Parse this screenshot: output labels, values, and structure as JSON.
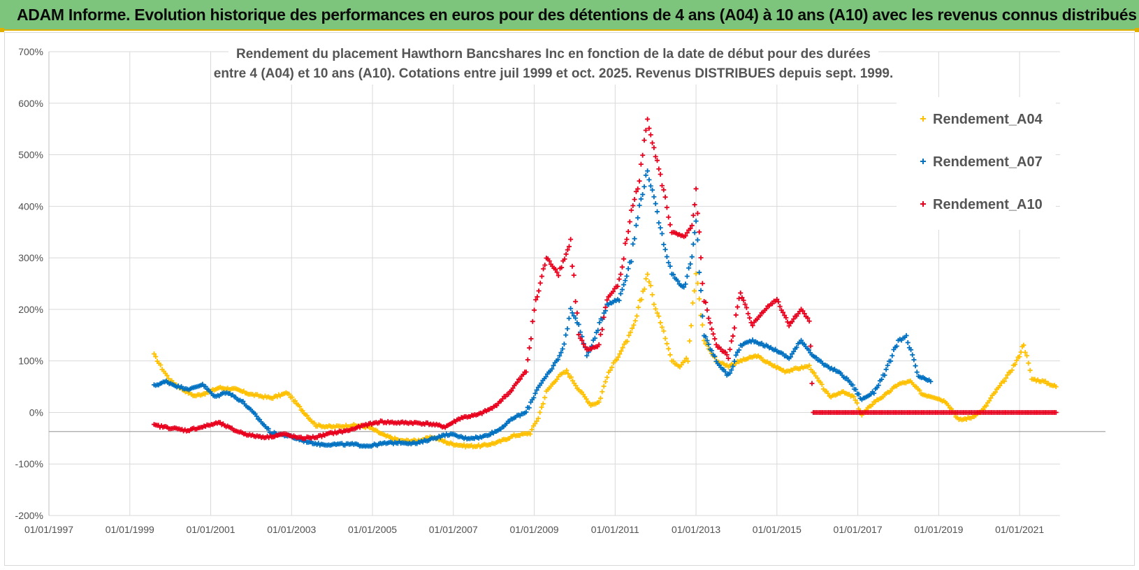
{
  "banner": {
    "title": "ADAM Informe. Evolution historique des performances en euros pour des détentions de 4 ans (A04) à 10 ans (A10) avec les revenus connus distribués"
  },
  "colors": {
    "banner": "#7dc47c",
    "a04": "#ffc000",
    "a07": "#0070c0",
    "a10": "#e8001c",
    "grid": "#d9d9d9"
  },
  "chart_data": {
    "type": "scatter",
    "title_lines": [
      "Rendement du placement Hawthorn Bancshares Inc en fonction de la date de début pour des durées",
      "entre 4 (A04) et 10 ans (A10). Cotations entre juil 1999 et oct. 2025. Revenus DISTRIBUES depuis sept. 1999."
    ],
    "xlabel": "",
    "ylabel": "",
    "ylim": [
      -200,
      700
    ],
    "yticks": [
      -200,
      -100,
      0,
      100,
      200,
      300,
      400,
      500,
      600,
      700
    ],
    "ytick_labels": [
      "-200%",
      "-100%",
      "0%",
      "100%",
      "200%",
      "300%",
      "400%",
      "500%",
      "600%",
      "700%"
    ],
    "xlim": [
      "01/01/1997",
      "01/01/2022"
    ],
    "xticks": [
      "01/01/1997",
      "01/01/1999",
      "01/01/2001",
      "01/01/2003",
      "01/01/2005",
      "01/01/2007",
      "01/01/2009",
      "01/01/2011",
      "01/01/2013",
      "01/01/2015",
      "01/01/2017",
      "01/01/2019",
      "01/01/2021"
    ],
    "grid": true,
    "legend_position": "top-right",
    "series": [
      {
        "name": "Rendement_A04",
        "color": "#ffc000",
        "points": [
          [
            1999.6,
            112
          ],
          [
            1999.8,
            85
          ],
          [
            2000.0,
            62
          ],
          [
            2000.3,
            45
          ],
          [
            2000.6,
            32
          ],
          [
            2000.9,
            38
          ],
          [
            2001.2,
            48
          ],
          [
            2001.6,
            45
          ],
          [
            2002.0,
            35
          ],
          [
            2002.5,
            28
          ],
          [
            2002.9,
            38
          ],
          [
            2003.2,
            10
          ],
          [
            2003.6,
            -25
          ],
          [
            2004.0,
            -28
          ],
          [
            2004.5,
            -25
          ],
          [
            2004.9,
            -28
          ],
          [
            2005.3,
            -45
          ],
          [
            2005.7,
            -55
          ],
          [
            2006.1,
            -55
          ],
          [
            2006.5,
            -48
          ],
          [
            2006.9,
            -60
          ],
          [
            2007.3,
            -65
          ],
          [
            2007.7,
            -65
          ],
          [
            2008.1,
            -58
          ],
          [
            2008.5,
            -45
          ],
          [
            2008.9,
            -40
          ],
          [
            2009.1,
            -10
          ],
          [
            2009.3,
            40
          ],
          [
            2009.6,
            70
          ],
          [
            2009.8,
            80
          ],
          [
            2010.1,
            45
          ],
          [
            2010.4,
            15
          ],
          [
            2010.6,
            20
          ],
          [
            2010.8,
            70
          ],
          [
            2011.0,
            100
          ],
          [
            2011.3,
            140
          ],
          [
            2011.5,
            175
          ],
          [
            2011.8,
            270
          ],
          [
            2012.0,
            200
          ],
          [
            2012.2,
            160
          ],
          [
            2012.4,
            100
          ],
          [
            2012.6,
            90
          ],
          [
            2012.8,
            110
          ],
          [
            2013.0,
            270
          ],
          [
            2013.2,
            140
          ],
          [
            2013.5,
            100
          ],
          [
            2013.8,
            90
          ],
          [
            2014.1,
            100
          ],
          [
            2014.5,
            110
          ],
          [
            2014.8,
            95
          ],
          [
            2015.2,
            80
          ],
          [
            2015.5,
            85
          ],
          [
            2015.8,
            90
          ],
          [
            2016.0,
            65
          ],
          [
            2016.3,
            30
          ],
          [
            2016.6,
            40
          ],
          [
            2016.9,
            30
          ],
          [
            2017.1,
            -5
          ],
          [
            2017.4,
            20
          ],
          [
            2017.7,
            35
          ],
          [
            2018.0,
            55
          ],
          [
            2018.3,
            60
          ],
          [
            2018.6,
            35
          ],
          [
            2018.9,
            30
          ],
          [
            2019.2,
            20
          ],
          [
            2019.5,
            -15
          ],
          [
            2019.8,
            -10
          ],
          [
            2020.1,
            5
          ],
          [
            2020.4,
            40
          ],
          [
            2020.7,
            70
          ],
          [
            2021.0,
            110
          ],
          [
            2021.1,
            135
          ],
          [
            2021.3,
            65
          ],
          [
            2021.6,
            60
          ],
          [
            2021.9,
            50
          ]
        ]
      },
      {
        "name": "Rendement_A07",
        "color": "#0070c0",
        "points": [
          [
            1999.6,
            52
          ],
          [
            1999.9,
            60
          ],
          [
            2000.2,
            50
          ],
          [
            2000.5,
            45
          ],
          [
            2000.8,
            55
          ],
          [
            2001.1,
            30
          ],
          [
            2001.4,
            40
          ],
          [
            2001.8,
            20
          ],
          [
            2002.1,
            -5
          ],
          [
            2002.5,
            -40
          ],
          [
            2002.9,
            -45
          ],
          [
            2003.3,
            -55
          ],
          [
            2003.7,
            -62
          ],
          [
            2004.1,
            -62
          ],
          [
            2004.5,
            -62
          ],
          [
            2004.9,
            -65
          ],
          [
            2005.3,
            -60
          ],
          [
            2005.7,
            -58
          ],
          [
            2006.1,
            -60
          ],
          [
            2006.5,
            -50
          ],
          [
            2006.9,
            -42
          ],
          [
            2007.3,
            -50
          ],
          [
            2007.7,
            -48
          ],
          [
            2008.1,
            -35
          ],
          [
            2008.5,
            -10
          ],
          [
            2008.8,
            0
          ],
          [
            2009.1,
            50
          ],
          [
            2009.4,
            80
          ],
          [
            2009.7,
            120
          ],
          [
            2009.9,
            200
          ],
          [
            2010.1,
            170
          ],
          [
            2010.3,
            110
          ],
          [
            2010.5,
            145
          ],
          [
            2010.8,
            210
          ],
          [
            2011.1,
            220
          ],
          [
            2011.4,
            300
          ],
          [
            2011.6,
            400
          ],
          [
            2011.8,
            470
          ],
          [
            2012.0,
            400
          ],
          [
            2012.2,
            330
          ],
          [
            2012.4,
            270
          ],
          [
            2012.7,
            240
          ],
          [
            2012.9,
            300
          ],
          [
            2013.0,
            370
          ],
          [
            2013.2,
            150
          ],
          [
            2013.5,
            100
          ],
          [
            2013.8,
            70
          ],
          [
            2014.1,
            130
          ],
          [
            2014.4,
            140
          ],
          [
            2014.7,
            130
          ],
          [
            2015.0,
            120
          ],
          [
            2015.3,
            105
          ],
          [
            2015.6,
            140
          ],
          [
            2015.9,
            110
          ],
          [
            2016.2,
            90
          ],
          [
            2016.5,
            80
          ],
          [
            2016.8,
            60
          ],
          [
            2017.1,
            25
          ],
          [
            2017.4,
            40
          ],
          [
            2017.7,
            80
          ],
          [
            2018.0,
            140
          ],
          [
            2018.2,
            145
          ],
          [
            2018.5,
            70
          ],
          [
            2018.8,
            60
          ]
        ]
      },
      {
        "name": "Rendement_A10",
        "color": "#e8001c",
        "points": [
          [
            1999.6,
            -25
          ],
          [
            2000.0,
            -30
          ],
          [
            2000.4,
            -35
          ],
          [
            2000.8,
            -28
          ],
          [
            2001.2,
            -20
          ],
          [
            2001.6,
            -35
          ],
          [
            2002.0,
            -45
          ],
          [
            2002.4,
            -48
          ],
          [
            2002.8,
            -42
          ],
          [
            2003.2,
            -50
          ],
          [
            2003.6,
            -48
          ],
          [
            2004.0,
            -40
          ],
          [
            2004.4,
            -35
          ],
          [
            2004.8,
            -25
          ],
          [
            2005.2,
            -18
          ],
          [
            2005.6,
            -20
          ],
          [
            2006.0,
            -20
          ],
          [
            2006.4,
            -22
          ],
          [
            2006.8,
            -28
          ],
          [
            2007.2,
            -10
          ],
          [
            2007.6,
            -5
          ],
          [
            2008.0,
            10
          ],
          [
            2008.4,
            40
          ],
          [
            2008.8,
            80
          ],
          [
            2009.0,
            200
          ],
          [
            2009.3,
            300
          ],
          [
            2009.6,
            270
          ],
          [
            2009.9,
            330
          ],
          [
            2010.1,
            150
          ],
          [
            2010.3,
            120
          ],
          [
            2010.6,
            130
          ],
          [
            2010.8,
            220
          ],
          [
            2011.1,
            250
          ],
          [
            2011.4,
            390
          ],
          [
            2011.6,
            450
          ],
          [
            2011.8,
            570
          ],
          [
            2012.0,
            500
          ],
          [
            2012.2,
            430
          ],
          [
            2012.4,
            350
          ],
          [
            2012.7,
            340
          ],
          [
            2012.9,
            360
          ],
          [
            2013.0,
            420
          ],
          [
            2013.2,
            220
          ],
          [
            2013.5,
            130
          ],
          [
            2013.8,
            110
          ],
          [
            2014.1,
            230
          ],
          [
            2014.4,
            170
          ],
          [
            2014.7,
            200
          ],
          [
            2015.0,
            220
          ],
          [
            2015.3,
            170
          ],
          [
            2015.6,
            200
          ],
          [
            2015.8,
            180
          ],
          [
            2015.9,
            0
          ],
          [
            2017.0,
            0
          ],
          [
            2018.0,
            0
          ],
          [
            2019.0,
            0
          ],
          [
            2020.0,
            0
          ],
          [
            2021.0,
            0
          ],
          [
            2021.9,
            0
          ]
        ]
      }
    ]
  }
}
